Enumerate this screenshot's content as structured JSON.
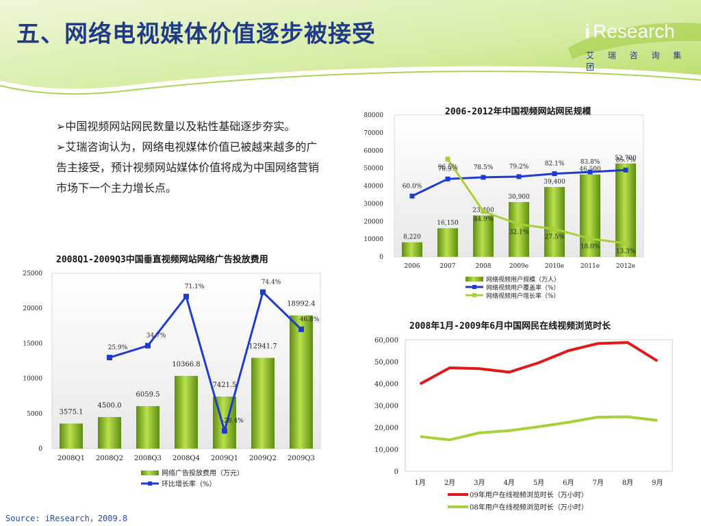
{
  "page": {
    "title": "五、网络电视媒体价值逐步被接受",
    "logo_i": "i",
    "logo_word": "Research",
    "logo_sub": "艾 瑞 咨 询 集 团",
    "source": "Source: iResearch，2009.8",
    "bullets": [
      "➢中国视频网站网民数量以及粘性基础逐步夯实。",
      "➢艾瑞咨询认为，网络电视媒体价值已被越来越多的广告主接受，预计视频网站媒体价值将成为中国网络营销市场下一个主力增长点。"
    ]
  },
  "colors": {
    "title": "#1f3a87",
    "bar": "#86b828",
    "blue_line": "#1e3bd0",
    "green_line": "#a8d038",
    "red_line": "#e01818",
    "header_green": "#cfe89a"
  },
  "chart_data": [
    {
      "type": "bar",
      "title": "2006-2012年中国视频网站网民规模",
      "categories": [
        "2006",
        "2007",
        "2008",
        "2009e",
        "2010e",
        "2011e",
        "2012e"
      ],
      "ylim": [
        0,
        80000
      ],
      "yticks": [
        "0",
        "10000",
        "20000",
        "30000",
        "40000",
        "50000",
        "60000",
        "70000",
        "80000"
      ],
      "series": [
        {
          "name": "网络视频用户规模（万人）",
          "kind": "bar",
          "values": [
            8220,
            16150,
            23400,
            30900,
            39400,
            46500,
            52700
          ],
          "labels": [
            "8,220",
            "16,150",
            "23,400",
            "30,900",
            "39,400",
            "46,500",
            "52,700"
          ]
        },
        {
          "name": "网络视频用户覆盖率（%）",
          "kind": "line",
          "values": [
            60.0,
            76.9,
            78.5,
            79.2,
            82.1,
            83.8,
            85.7
          ],
          "labels": [
            "60.0%",
            "76.9%",
            "78.5%",
            "79.2%",
            "82.1%",
            "83.8%",
            "85.7%"
          ]
        },
        {
          "name": "网络视频用户增长率（%）",
          "kind": "line",
          "values": [
            null,
            96.5,
            44.9,
            32.1,
            27.5,
            18.0,
            13.3
          ],
          "labels": [
            "",
            "96.5%",
            "44.9%",
            "32.1%",
            "27.5%",
            "18.0%",
            "13.3%"
          ]
        }
      ]
    },
    {
      "type": "bar",
      "title": "2008Q1-2009Q3中国垂直视频网站网络广告投放费用",
      "categories": [
        "2008Q1",
        "2008Q2",
        "2008Q3",
        "2008Q4",
        "2009Q1",
        "2009Q2",
        "2009Q3"
      ],
      "ylim": [
        0,
        25000
      ],
      "yticks": [
        "0",
        "5000",
        "10000",
        "15000",
        "20000",
        "25000"
      ],
      "series": [
        {
          "name": "网络广告投放费用（万元）",
          "kind": "bar",
          "values": [
            3575.1,
            4500.0,
            6059.5,
            10366.8,
            7421.5,
            12941.7,
            18992.4
          ],
          "labels": [
            "3575.1",
            "4500.0",
            "6059.5",
            "10366.8",
            "7421.5",
            "12941.7",
            "18992.4"
          ]
        },
        {
          "name": "环比增长率（%）",
          "kind": "line",
          "values": [
            null,
            25.9,
            34.7,
            71.1,
            -28.4,
            74.4,
            46.8
          ],
          "labels": [
            "",
            "25.9%",
            "34.7%",
            "71.1%",
            "-28.4%",
            "74.4%",
            "46.8%"
          ]
        }
      ]
    },
    {
      "type": "line",
      "title": "2008年1月-2009年6月中国网民在线视频浏览时长",
      "categories": [
        "1月",
        "2月",
        "3月",
        "4月",
        "5月",
        "6月",
        "7月",
        "8月",
        "9月"
      ],
      "ylim": [
        0,
        60000
      ],
      "yticks": [
        "0",
        "10,000",
        "20,000",
        "30,000",
        "40,000",
        "50,000",
        "60,000"
      ],
      "series": [
        {
          "name": "09年用户在线视频浏览时长（万小时）",
          "values": [
            39800,
            47200,
            46800,
            45200,
            49500,
            55000,
            58300,
            58700,
            50300
          ]
        },
        {
          "name": "08年用户在线视频浏览时长（万小时）",
          "values": [
            15800,
            14300,
            17500,
            18500,
            20300,
            22300,
            24700,
            24800,
            23200
          ]
        }
      ]
    }
  ]
}
